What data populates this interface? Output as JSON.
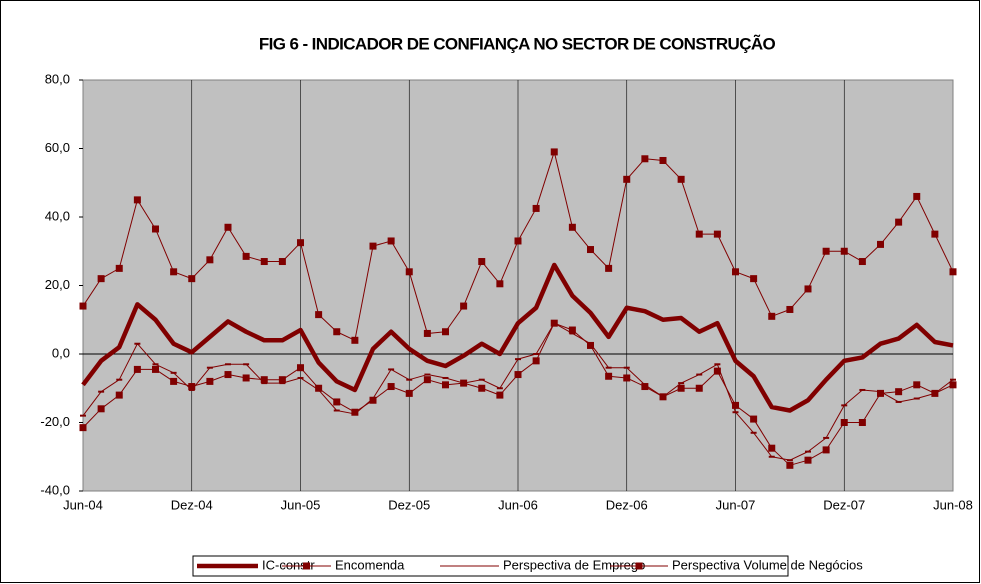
{
  "chart_data": {
    "type": "line",
    "title": "FIG 6 - INDICADOR DE CONFIANÇA NO SECTOR DE CONSTRUÇÃO",
    "categories": [
      "Jun-04",
      null,
      null,
      null,
      null,
      null,
      "Dez-04",
      null,
      null,
      null,
      null,
      null,
      "Jun-05",
      null,
      null,
      null,
      null,
      null,
      "Dez-05",
      null,
      null,
      null,
      null,
      null,
      "Jun-06",
      null,
      null,
      null,
      null,
      null,
      "Dez-06",
      null,
      null,
      null,
      null,
      null,
      "Jun-07",
      null,
      null,
      null,
      null,
      null,
      "Dez-07",
      null,
      null,
      null,
      null,
      null,
      "Jun-08"
    ],
    "ylim": [
      -40,
      80
    ],
    "yticks": [
      {
        "value": -40,
        "label": "-40,0"
      },
      {
        "value": -20,
        "label": "-20,0"
      },
      {
        "value": 0,
        "label": "0,0"
      },
      {
        "value": 20,
        "label": "20,0"
      },
      {
        "value": 40,
        "label": "40,0"
      },
      {
        "value": 60,
        "label": "60,0"
      },
      {
        "value": 80,
        "label": "80,0"
      }
    ],
    "grid": true,
    "legend": "bottom",
    "series": [
      {
        "name": "IC-constr",
        "color": "#800000",
        "line_width": 4.5,
        "marker": "none",
        "values": [
          -9,
          -2,
          2,
          14.5,
          10,
          3,
          0.5,
          5,
          9.5,
          6.5,
          4,
          4,
          7,
          -2.5,
          -8,
          -10.5,
          1.5,
          6.5,
          1.5,
          -2,
          -3.5,
          -0.5,
          3,
          0,
          9,
          13.5,
          26,
          17,
          12,
          5,
          13.5,
          12.5,
          10,
          10.5,
          6.5,
          9,
          -2,
          -6.5,
          -15.5,
          -16.5,
          -13.5,
          -7.5,
          -2,
          -1,
          3,
          4.5,
          8.5,
          3.5,
          2.5
        ]
      },
      {
        "name": "Encomenda",
        "color": "#800000",
        "line_width": 1,
        "marker": "square",
        "values": [
          -21.5,
          -16,
          -12,
          -4.5,
          -4.5,
          -8,
          -9.5,
          -8,
          -6,
          -7,
          -7.5,
          -7.5,
          -4,
          -10,
          -14,
          -17,
          -13.5,
          -9.5,
          -11.5,
          -7.5,
          -9,
          -8.5,
          -10,
          -12,
          -6,
          -2,
          9,
          7,
          2.5,
          -6.5,
          -7,
          -9.5,
          -12.5,
          -10,
          -10,
          -5,
          -15,
          -19,
          -27.5,
          -32.5,
          -31,
          -28,
          -20,
          -20,
          -11.5,
          -11,
          -9,
          -11.5,
          -9
        ]
      },
      {
        "name": "Perspectiva de Emprego",
        "color": "#800000",
        "line_width": 1,
        "marker": "dash",
        "values": [
          -18,
          -11,
          -7.5,
          3,
          -3,
          -5.5,
          -10.5,
          -4,
          -3,
          -3,
          -8.5,
          -8.5,
          -7,
          -10.5,
          -16.5,
          -17.5,
          -13,
          -4.5,
          -7.5,
          -6,
          -7,
          -8.5,
          -7.5,
          -10,
          -1.5,
          0,
          9,
          6,
          3,
          -4,
          -4,
          -9,
          -12.5,
          -8.5,
          -6,
          -3,
          -17,
          -23,
          -30,
          -31,
          -28.5,
          -24.5,
          -15,
          -10.5,
          -11,
          -14,
          -13,
          -11.5,
          -7.5
        ]
      },
      {
        "name": "Perspectiva Volume de Negócios",
        "color": "#800000",
        "line_width": 1,
        "marker": "square",
        "values": [
          14,
          22,
          25,
          45,
          36.5,
          24,
          22,
          27.5,
          37,
          28.5,
          27,
          27,
          32.5,
          11.5,
          6.5,
          4,
          31.5,
          33,
          24,
          6,
          6.5,
          14,
          27,
          20.5,
          33,
          42.5,
          59,
          37,
          30.5,
          25,
          51,
          57,
          56.5,
          51,
          35,
          35,
          24,
          22,
          11,
          13,
          19,
          30,
          30,
          27,
          32,
          38.5,
          46,
          35,
          24
        ]
      }
    ]
  }
}
